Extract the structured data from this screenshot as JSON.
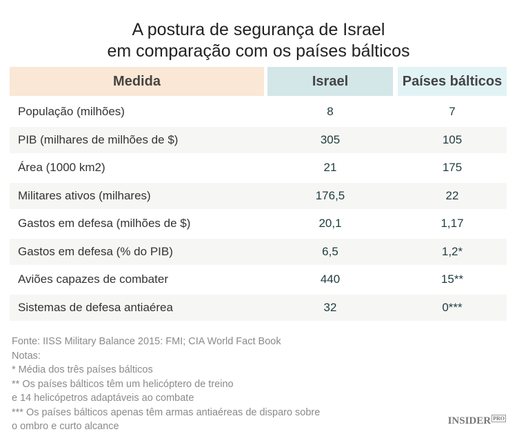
{
  "title": [
    "A postura de segurança de Israel",
    "em comparação com os países bálticos"
  ],
  "headers": [
    "Medida",
    "Israel",
    "Países bálticos"
  ],
  "rows": [
    [
      "População (milhões)",
      "8",
      "7"
    ],
    [
      "PIB (milhares de milhões de $)",
      "305",
      "105"
    ],
    [
      "Área (1000 km2)",
      "21",
      "175"
    ],
    [
      "Militares ativos (milhares)",
      "176,5",
      "22"
    ],
    [
      "Gastos em defesa (milhões de $)",
      "20,1",
      "1,17"
    ],
    [
      "Gastos em defesa (% do PIB)",
      "6,5",
      "1,2*"
    ],
    [
      "Aviões capazes de combater",
      "440",
      "15**"
    ],
    [
      "Sistemas de defesa antiaérea",
      "32",
      "0***"
    ]
  ],
  "notes": [
    "Fonte: IISS Military Balance 2015: FMI; CIA World Fact Book",
    "Notas:",
    "* Média dos três países bálticos",
    "** Os países bálticos têm um helicóptero de treino",
    "e 14 helicópetros adaptáveis ao combate",
    "*** Os países bálticos apenas têm armas antiaéreas de disparo sobre",
    "o ombro e curto alcance"
  ],
  "logo": {
    "main": "INSIDER",
    "sub": "PRO"
  },
  "colors": {
    "medida_header": "#fbe7d5",
    "israel_header": "#d3e6e8",
    "baltic_header": "#e2f3f5",
    "alt_row": "#f6f6f4"
  }
}
